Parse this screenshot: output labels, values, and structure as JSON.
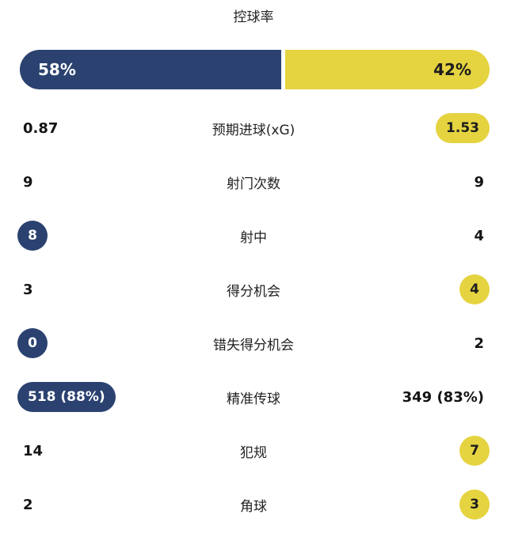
{
  "title": "控球率",
  "possession": {
    "home_label": "58%",
    "home_value": 58,
    "away_label": "42%",
    "away_value": 42
  },
  "colors": {
    "home": "#2b4270",
    "away": "#e5d340",
    "text_dark": "#1d1d1d",
    "text_on_home": "#ffffff",
    "background": "#ffffff"
  },
  "rows": [
    {
      "label": "预期进球(xG)",
      "home": "0.87",
      "away": "1.53",
      "home_badge": null,
      "away_badge": "pill"
    },
    {
      "label": "射门次数",
      "home": "9",
      "away": "9",
      "home_badge": null,
      "away_badge": null
    },
    {
      "label": "射中",
      "home": "8",
      "away": "4",
      "home_badge": "circle",
      "away_badge": null
    },
    {
      "label": "得分机会",
      "home": "3",
      "away": "4",
      "home_badge": null,
      "away_badge": "circle"
    },
    {
      "label": "错失得分机会",
      "home": "0",
      "away": "2",
      "home_badge": "circle",
      "away_badge": null
    },
    {
      "label": "精准传球",
      "home": "518 (88%)",
      "away": "349 (83%)",
      "home_badge": "pill",
      "away_badge": null
    },
    {
      "label": "犯规",
      "home": "14",
      "away": "7",
      "home_badge": null,
      "away_badge": "circle"
    },
    {
      "label": "角球",
      "home": "2",
      "away": "3",
      "home_badge": null,
      "away_badge": "circle"
    }
  ]
}
